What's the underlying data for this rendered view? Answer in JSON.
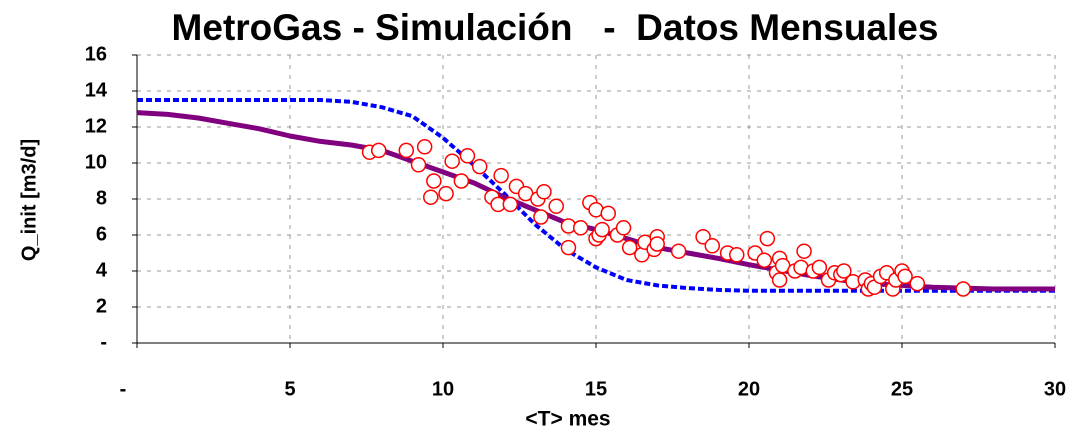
{
  "chart_data": {
    "type": "scatter",
    "title": "MetroGas - Simulación   -  Datos Mensuales",
    "xlabel": "<T>  mes",
    "ylabel": "Q_init [m3/d]",
    "xlim": [
      0,
      30
    ],
    "ylim": [
      0,
      16
    ],
    "xticks": [
      {
        "value": 0,
        "label": "-"
      },
      5,
      10,
      15,
      20,
      25,
      30
    ],
    "yticks": [
      {
        "value": 0,
        "label": "-"
      },
      2,
      4,
      6,
      8,
      10,
      12,
      14,
      16
    ],
    "grid": true,
    "series": [
      {
        "type": "line",
        "style": "dashed",
        "color": "#0000ff",
        "x": [
          0,
          1,
          2,
          3,
          4,
          5,
          6,
          7,
          8,
          9,
          10,
          11,
          12,
          13,
          14,
          15,
          16,
          17,
          18,
          19,
          20,
          21,
          22,
          23,
          24,
          25,
          26,
          27,
          28,
          29,
          30
        ],
        "values": [
          13.5,
          13.5,
          13.5,
          13.5,
          13.5,
          13.5,
          13.5,
          13.4,
          13.1,
          12.6,
          11.4,
          9.9,
          8.3,
          6.6,
          5.2,
          4.2,
          3.5,
          3.2,
          3.05,
          2.95,
          2.9,
          2.9,
          2.9,
          2.9,
          2.9,
          2.9,
          2.9,
          2.9,
          2.9,
          2.9,
          2.9
        ]
      },
      {
        "type": "line",
        "style": "solid",
        "color": "#800080",
        "x": [
          0,
          1,
          2,
          3,
          4,
          5,
          6,
          7,
          8,
          9,
          10,
          11,
          12,
          13,
          14,
          15,
          16,
          17,
          18,
          19,
          20,
          21,
          22,
          23,
          24,
          25,
          26,
          27,
          28,
          29,
          30
        ],
        "values": [
          12.8,
          12.7,
          12.5,
          12.2,
          11.9,
          11.5,
          11.2,
          11.0,
          10.7,
          10.1,
          9.5,
          8.9,
          8.1,
          7.4,
          6.7,
          6.3,
          5.8,
          5.3,
          5.0,
          4.7,
          4.35,
          4.05,
          3.75,
          3.5,
          3.3,
          3.2,
          3.1,
          3.05,
          3.0,
          3.0,
          3.0
        ]
      },
      {
        "type": "scatter",
        "color": "#ff0000",
        "x": [
          7.6,
          7.9,
          8.8,
          9.2,
          9.4,
          9.6,
          9.7,
          10.1,
          10.3,
          10.6,
          10.8,
          11.2,
          11.6,
          11.8,
          11.9,
          12.2,
          12.4,
          12.7,
          13.1,
          13.3,
          13.2,
          13.7,
          14.1,
          14.1,
          14.5,
          14.8,
          15.0,
          15.0,
          15.1,
          15.2,
          15.4,
          15.7,
          15.9,
          16.1,
          16.5,
          16.6,
          16.9,
          17.0,
          17.0,
          17.7,
          18.5,
          18.8,
          19.3,
          19.6,
          20.2,
          20.5,
          20.6,
          20.9,
          21.0,
          21.0,
          21.1,
          21.5,
          21.7,
          21.8,
          22.1,
          22.3,
          22.6,
          22.8,
          23.0,
          23.1,
          23.4,
          23.8,
          23.9,
          24.0,
          24.1,
          24.3,
          24.5,
          24.7,
          24.8,
          25.0,
          25.1,
          25.5,
          27.0
        ],
        "values": [
          10.6,
          10.7,
          10.7,
          9.9,
          10.9,
          8.1,
          9.0,
          8.3,
          10.1,
          9.0,
          10.4,
          9.8,
          8.1,
          7.7,
          9.3,
          7.7,
          8.7,
          8.3,
          8.0,
          8.4,
          7.0,
          7.6,
          6.5,
          5.3,
          6.4,
          7.8,
          7.4,
          5.8,
          6.0,
          6.3,
          7.2,
          6.0,
          6.4,
          5.3,
          4.9,
          5.6,
          5.2,
          5.9,
          5.5,
          5.1,
          5.9,
          5.4,
          5.0,
          4.9,
          5.0,
          4.6,
          5.8,
          3.9,
          4.7,
          3.5,
          4.3,
          4.0,
          4.2,
          5.1,
          4.0,
          4.2,
          3.5,
          3.9,
          3.8,
          4.0,
          3.4,
          3.5,
          3.0,
          3.3,
          3.1,
          3.7,
          3.9,
          3.0,
          3.5,
          4.0,
          3.7,
          3.3,
          3.0
        ]
      }
    ]
  }
}
